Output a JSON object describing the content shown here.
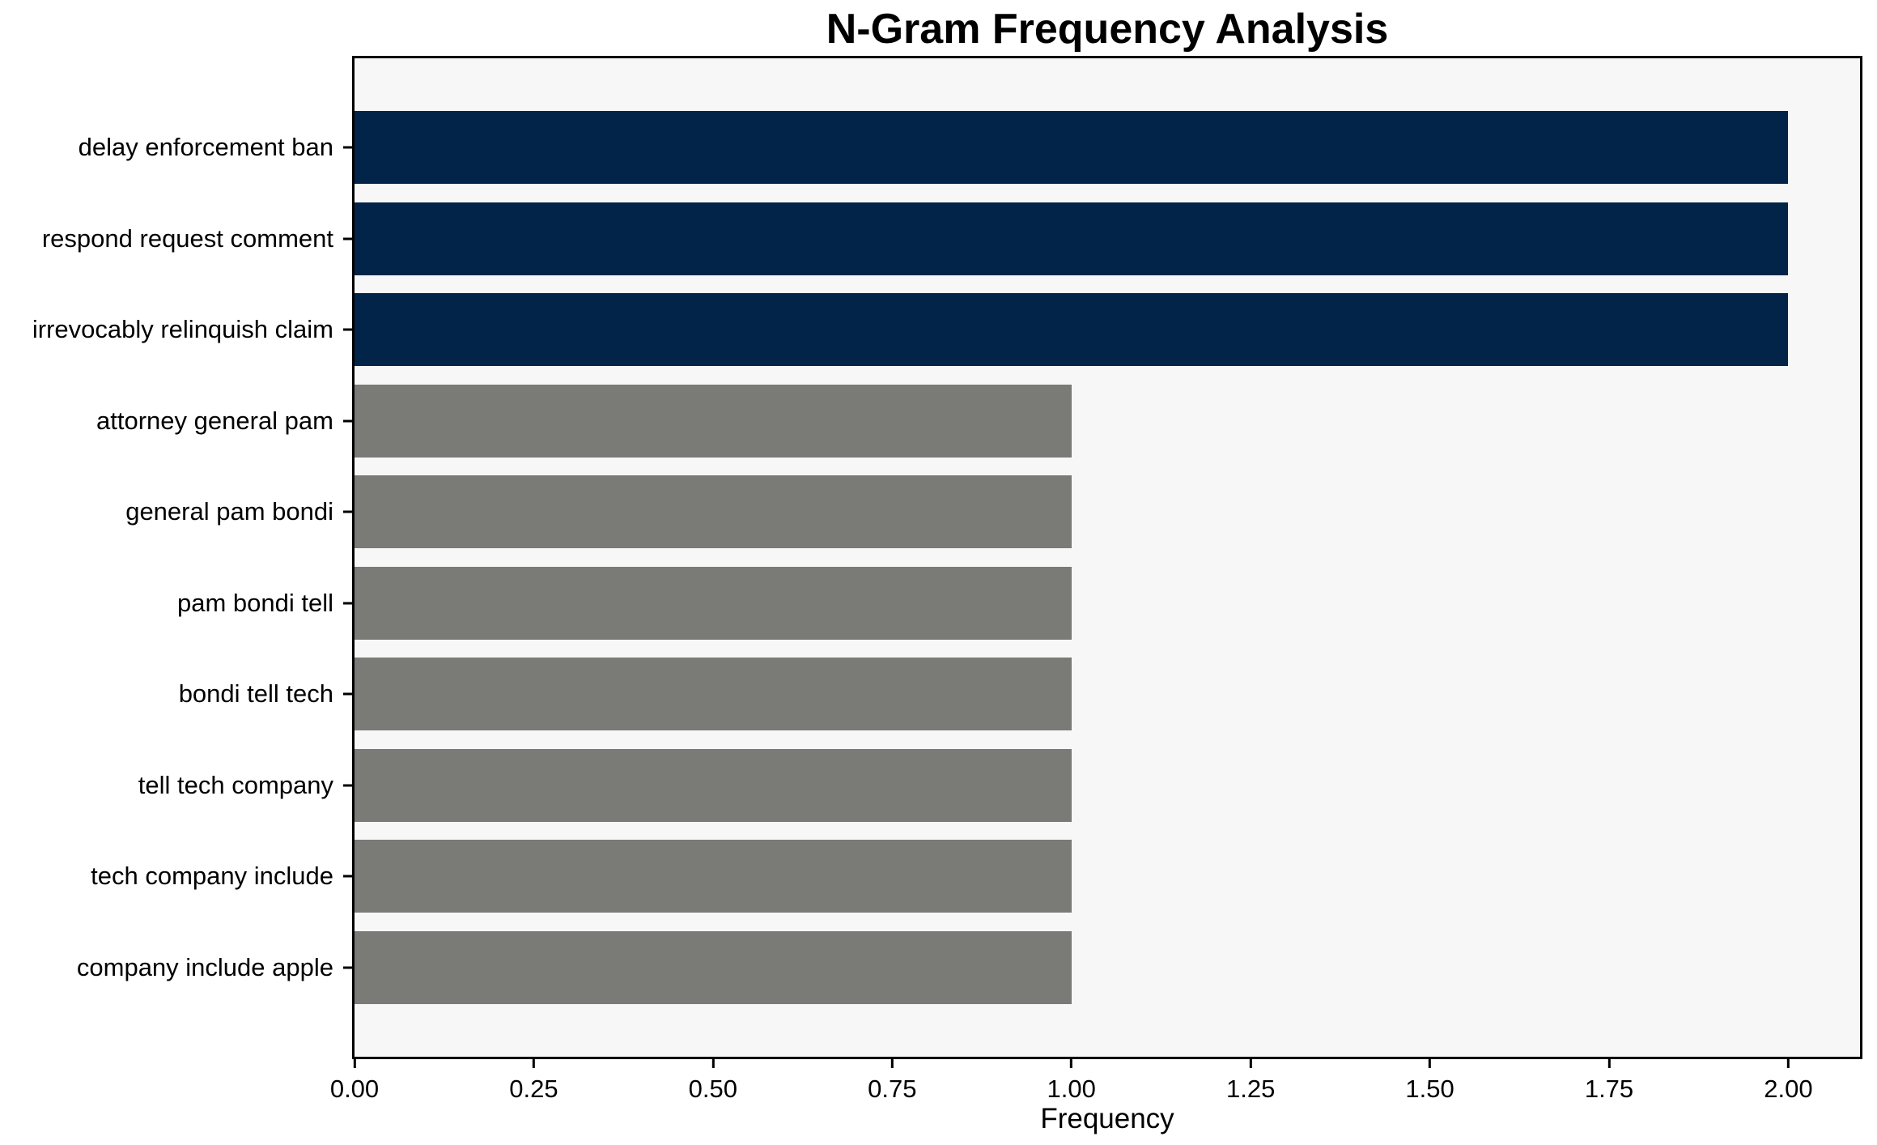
{
  "chart_data": {
    "type": "bar",
    "orientation": "horizontal",
    "title": "N-Gram Frequency Analysis",
    "xlabel": "Frequency",
    "ylabel": "",
    "categories": [
      "delay enforcement ban",
      "respond request comment",
      "irrevocably relinquish claim",
      "attorney general pam",
      "general pam bondi",
      "pam bondi tell",
      "bondi tell tech",
      "tell tech company",
      "tech company include",
      "company include apple"
    ],
    "values": [
      2,
      2,
      2,
      1,
      1,
      1,
      1,
      1,
      1,
      1
    ],
    "bar_colors": [
      "#022449",
      "#022449",
      "#022449",
      "#7A7A76",
      "#7A7A76",
      "#7A7A76",
      "#7A7A76",
      "#7A7A76",
      "#7A7A76",
      "#7A7A76"
    ],
    "xlim": [
      0,
      2.1
    ],
    "xtick_values": [
      0.0,
      0.25,
      0.5,
      0.75,
      1.0,
      1.25,
      1.5,
      1.75,
      2.0
    ],
    "xtick_labels": [
      "0.00",
      "0.25",
      "0.50",
      "0.75",
      "1.00",
      "1.25",
      "1.50",
      "1.75",
      "2.00"
    ],
    "grid": false,
    "legend": null,
    "colors": {
      "accent_navy": "#022449",
      "neutral_gray": "#7A7A76",
      "plot_background": "#F7F7F7",
      "figure_background": "#FFFFFF",
      "axis": "#000000"
    }
  }
}
